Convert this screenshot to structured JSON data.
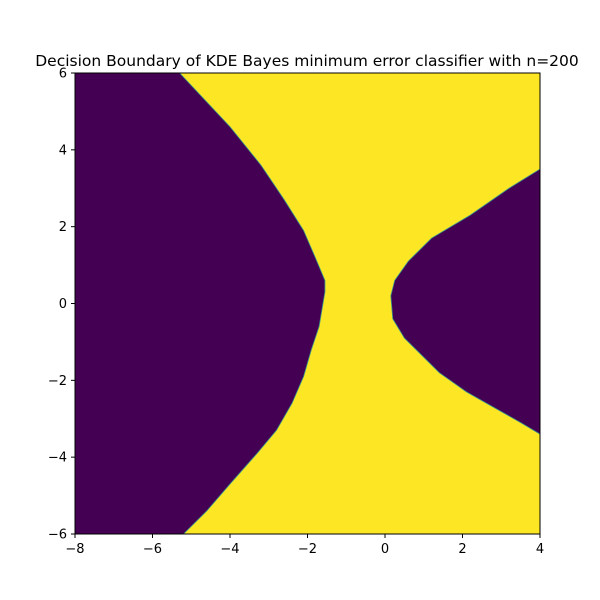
{
  "chart_data": {
    "type": "heatmap",
    "title": "Decision Boundary of KDE Bayes minimum error classifier with n=200",
    "xlabel": "",
    "ylabel": "",
    "xlim": [
      -8,
      4
    ],
    "ylim": [
      -6,
      6
    ],
    "x_ticks": [
      -8,
      -6,
      -4,
      -2,
      0,
      2,
      4
    ],
    "y_ticks": [
      -6,
      -4,
      -2,
      0,
      2,
      4,
      6
    ],
    "x_tick_labels": [
      "−8",
      "−6",
      "−4",
      "−2",
      "0",
      "2",
      "4"
    ],
    "y_tick_labels": [
      "−6",
      "−4",
      "−2",
      "0",
      "2",
      "4",
      "6"
    ],
    "grid": false,
    "legend": "none",
    "class_colors": {
      "class_0": "#440154",
      "class_1": "#fde725"
    },
    "background_class": "class_1",
    "regions": [
      {
        "class": "class_0",
        "side": "left",
        "boundary": [
          [
            -5.3,
            6.0
          ],
          [
            -4.0,
            4.6
          ],
          [
            -3.2,
            3.6
          ],
          [
            -2.6,
            2.7
          ],
          [
            -2.1,
            1.9
          ],
          [
            -1.8,
            1.2
          ],
          [
            -1.55,
            0.6
          ],
          [
            -1.55,
            0.3
          ],
          [
            -1.6,
            0.0
          ],
          [
            -1.7,
            -0.6
          ],
          [
            -1.9,
            -1.2
          ],
          [
            -2.1,
            -1.9
          ],
          [
            -2.4,
            -2.6
          ],
          [
            -2.8,
            -3.3
          ],
          [
            -3.3,
            -3.9
          ],
          [
            -4.0,
            -4.7
          ],
          [
            -4.6,
            -5.4
          ],
          [
            -5.2,
            -6.0
          ]
        ]
      },
      {
        "class": "class_0",
        "side": "right",
        "boundary": [
          [
            4.0,
            3.5
          ],
          [
            3.2,
            3.0
          ],
          [
            2.2,
            2.3
          ],
          [
            1.2,
            1.7
          ],
          [
            0.6,
            1.1
          ],
          [
            0.25,
            0.6
          ],
          [
            0.15,
            0.2
          ],
          [
            0.2,
            -0.4
          ],
          [
            0.5,
            -0.9
          ],
          [
            0.9,
            -1.3
          ],
          [
            1.4,
            -1.8
          ],
          [
            2.1,
            -2.3
          ],
          [
            2.8,
            -2.7
          ],
          [
            3.5,
            -3.1
          ],
          [
            4.0,
            -3.4
          ]
        ]
      }
    ]
  }
}
